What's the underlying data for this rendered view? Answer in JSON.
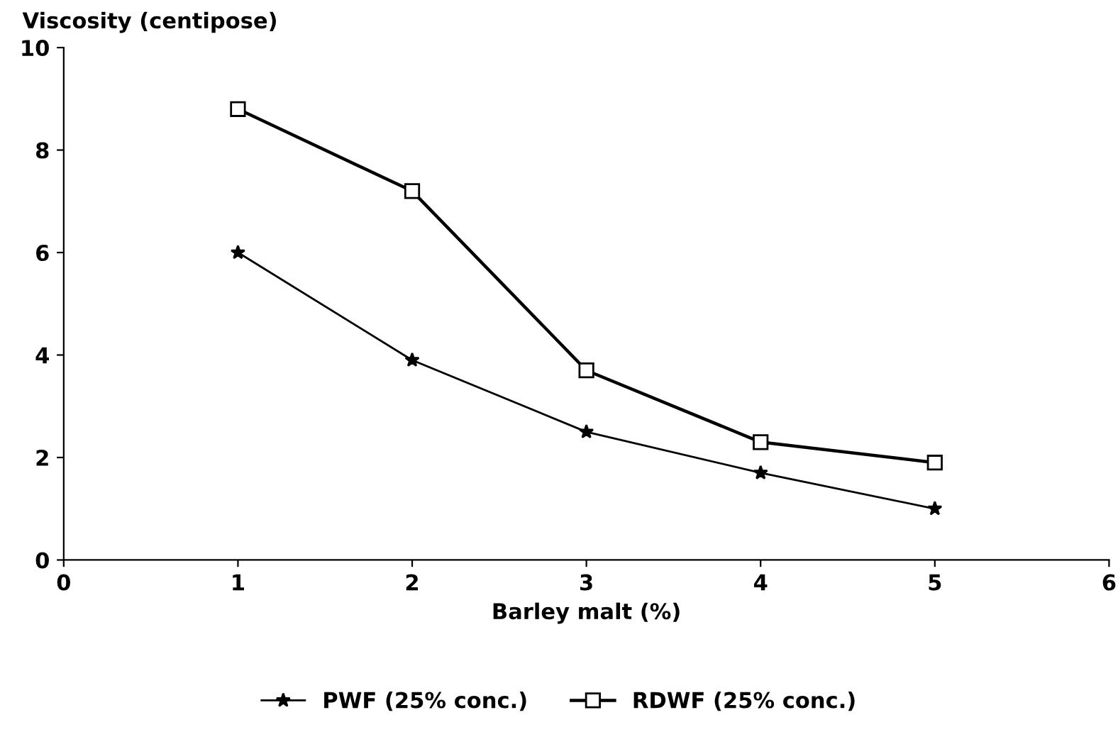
{
  "chart_data": {
    "type": "line",
    "xlabel": "Barley malt (%)",
    "ylabel": "Viscosity (centipose)",
    "x": [
      1,
      2,
      3,
      4,
      5
    ],
    "series": [
      {
        "name": "PWF (25% conc.)",
        "color": "#000000",
        "marker": "star",
        "values": [
          6.0,
          3.9,
          2.5,
          1.7,
          1.0
        ]
      },
      {
        "name": "RDWF (25% conc.)",
        "color": "#000000",
        "marker": "square",
        "values": [
          8.8,
          7.2,
          3.7,
          2.3,
          1.9
        ]
      }
    ],
    "xlim": [
      0,
      6
    ],
    "xticks": [
      0,
      1,
      2,
      3,
      4,
      5,
      6
    ],
    "ylim": [
      0,
      10
    ],
    "yticks": [
      0,
      2,
      4,
      6,
      8,
      10
    ],
    "grid": false,
    "legend": "bottom"
  }
}
